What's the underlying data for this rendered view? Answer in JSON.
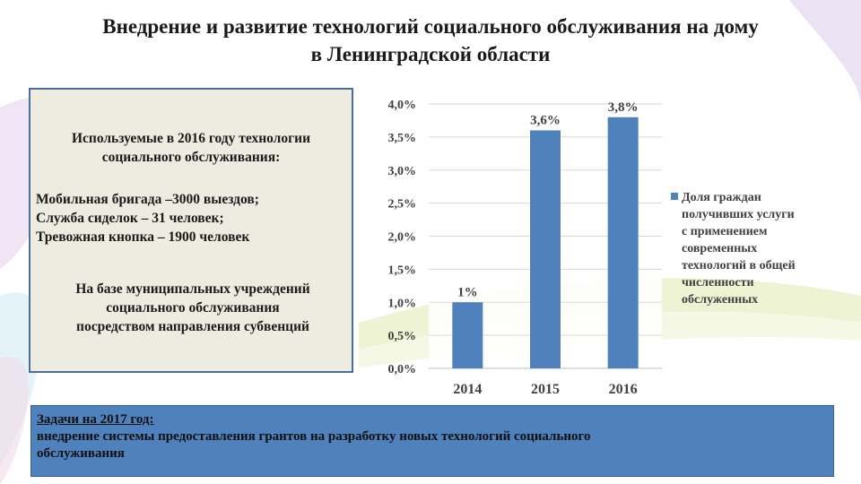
{
  "slide": {
    "title_line1": "Внедрение и развитие технологий социального обслуживания на дому",
    "title_line2": "в Ленинградской области"
  },
  "info_box": {
    "heading_line1": "Используемые в 2016 году технологии",
    "heading_line2": "социального обслуживания:",
    "items": [
      "Мобильная бригада –3000 выездов;",
      "Служба сиделок – 31 человек;",
      "Тревожная кнопка – 1900 человек"
    ],
    "note_line1": "На базе муниципальных учреждений",
    "note_line2": "социального обслуживания",
    "note_line3": "посредством направления субвенций"
  },
  "tasks": {
    "heading": "Задачи на 2017 год:",
    "text_line1": "внедрение системы предоставления грантов на разработку новых технологий социального",
    "text_line2": "обслуживания"
  },
  "chart_data": {
    "type": "bar",
    "categories": [
      "2014",
      "2015",
      "2016"
    ],
    "series": [
      {
        "name": "Доля граждан получивших услуги с применением современных технологий в общей численности обслуженных",
        "values": [
          1.0,
          3.6,
          3.8
        ],
        "data_labels": [
          "1%",
          "3,6%",
          "3,8%"
        ]
      }
    ],
    "ylim": [
      0,
      4.0
    ],
    "yticks": [
      "0,0%",
      "0,5%",
      "1,0%",
      "1,5%",
      "2,0%",
      "2,5%",
      "3,0%",
      "3,5%",
      "4,0%"
    ],
    "legend_lines": [
      "Доля граждан",
      "получивших услуги",
      "с применением",
      "современных",
      "технологий в общей",
      "численности",
      "обслуженных"
    ],
    "legend_position": "right",
    "grid": true,
    "colors": {
      "bar": "#4f81bd",
      "grid": "#d9d9d9"
    }
  }
}
